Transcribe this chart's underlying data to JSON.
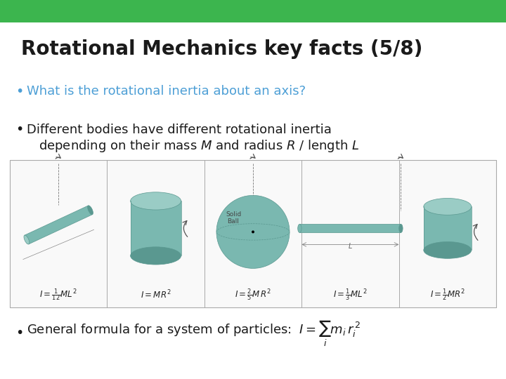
{
  "title": "Rotational Mechanics key facts (5/8)",
  "header_color": "#3cb54e",
  "bg_color": "#ffffff",
  "title_color": "#1a1a1a",
  "title_fontsize": 20,
  "bullet1_text": "What is the rotational inertia about an axis?",
  "bullet1_color": "#4d9fd6",
  "bullet1_fontsize": 13,
  "bullet2_line1": "Different bodies have different rotational inertia",
  "bullet2_line2": "depending on their mass $M$ and radius $R$ / length $L$",
  "bullet2_color": "#1a1a1a",
  "bullet2_fontsize": 13,
  "bullet3_color": "#1a1a1a",
  "bullet3_fontsize": 13,
  "teal": "#7ab8b0",
  "teal_dark": "#5a9890",
  "teal_light": "#9accc5",
  "box_border_color": "#aaaaaa",
  "box_bg": "#f9f9f9"
}
